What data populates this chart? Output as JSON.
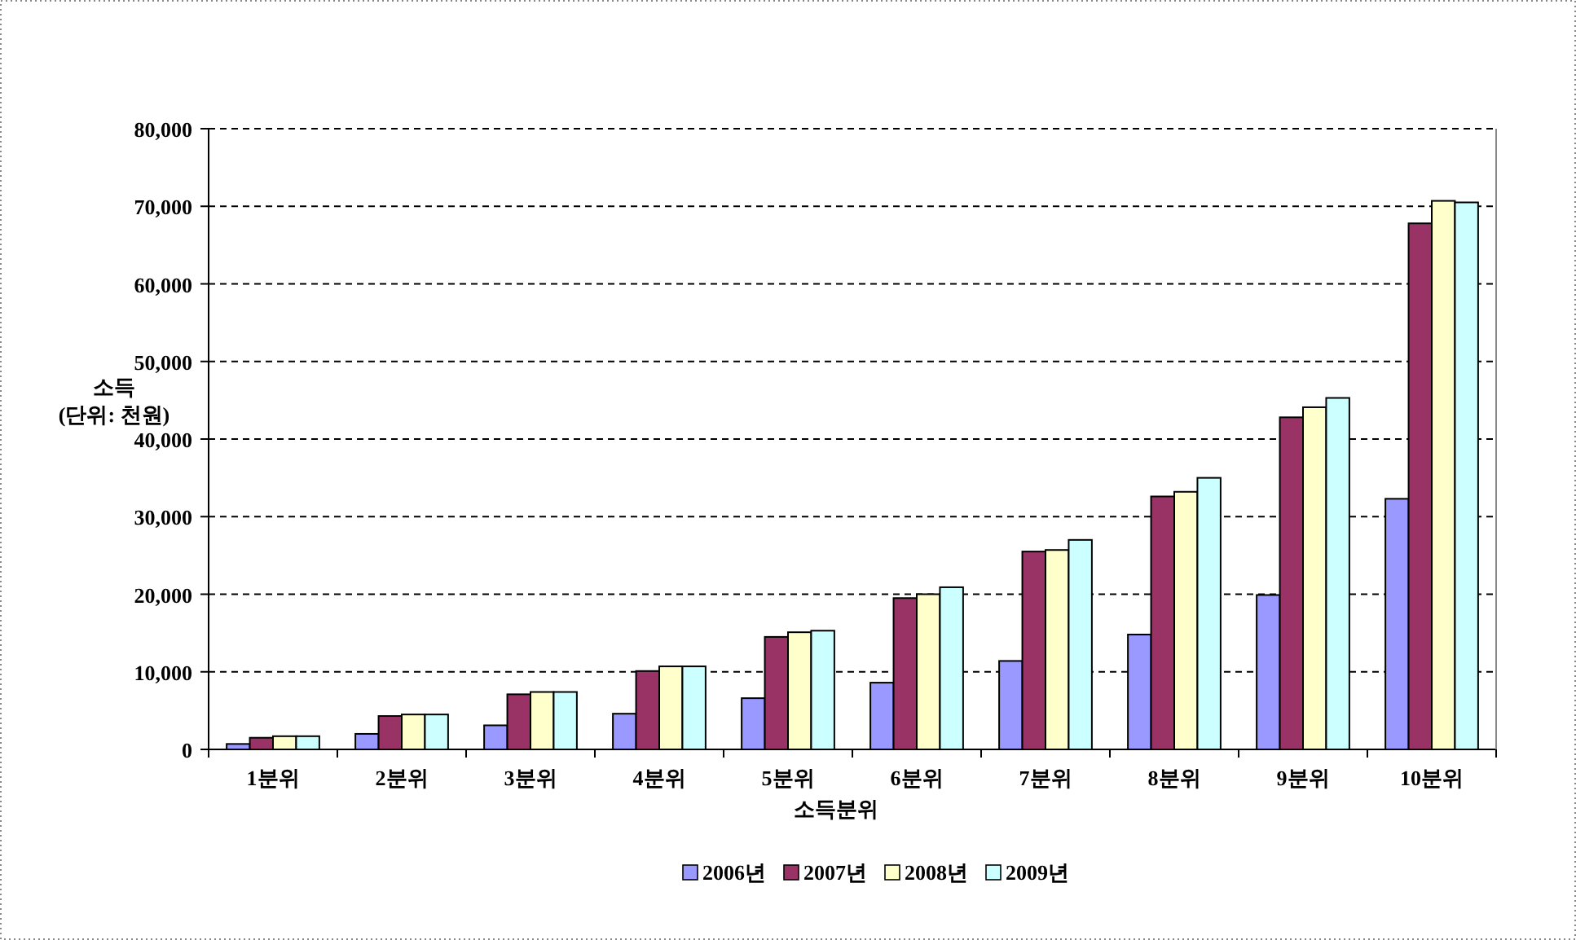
{
  "chart_data": {
    "type": "bar",
    "xlabel": "소득분위",
    "ylabel": "소득\n(단위: 천원)",
    "categories": [
      "1분위",
      "2분위",
      "3분위",
      "4분위",
      "5분위",
      "6분위",
      "7분위",
      "8분위",
      "9분위",
      "10분위"
    ],
    "series": [
      {
        "name": "2006년",
        "color": "#9999ff",
        "values": [
          700,
          2000,
          3100,
          4600,
          6600,
          8600,
          11400,
          14800,
          19900,
          32300
        ]
      },
      {
        "name": "2007년",
        "color": "#993366",
        "values": [
          1500,
          4300,
          7100,
          10100,
          14500,
          19500,
          25500,
          32600,
          42800,
          67800
        ]
      },
      {
        "name": "2008년",
        "color": "#ffffcc",
        "values": [
          1700,
          4500,
          7400,
          10700,
          15100,
          20000,
          25700,
          33200,
          44100,
          70700
        ]
      },
      {
        "name": "2009년",
        "color": "#ccffff",
        "values": [
          1700,
          4500,
          7400,
          10700,
          15300,
          20900,
          27000,
          35000,
          45300,
          70500
        ]
      }
    ],
    "ylim": [
      0,
      80000
    ],
    "yticks": [
      {
        "value": 0,
        "label": "0"
      },
      {
        "value": 10000,
        "label": "10,000"
      },
      {
        "value": 20000,
        "label": "20,000"
      },
      {
        "value": 30000,
        "label": "30,000"
      },
      {
        "value": 40000,
        "label": "40,000"
      },
      {
        "value": 50000,
        "label": "50,000"
      },
      {
        "value": 60000,
        "label": "60,000"
      },
      {
        "value": 70000,
        "label": "70,000"
      },
      {
        "value": 80000,
        "label": "80,000"
      }
    ],
    "grid": "y",
    "legend": "bottom"
  }
}
